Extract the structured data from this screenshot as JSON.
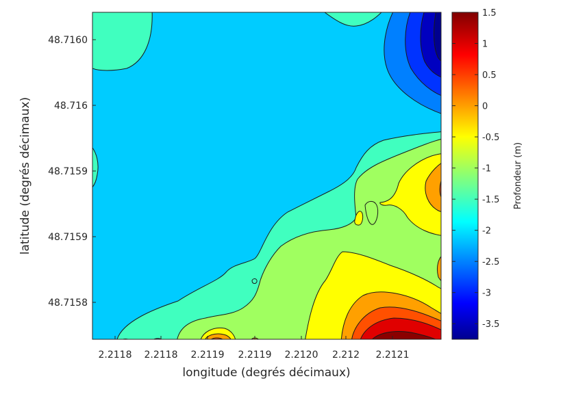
{
  "chart_data": {
    "type": "contour",
    "xlabel": "longitude (degrés décimaux)",
    "ylabel": "latitude (degrés décimaux)",
    "colorbar_label": "Profondeur (m)",
    "x_tick_labels": [
      "2.2118",
      "2.2118",
      "2.2119",
      "2.2119",
      "2.2120",
      "2.212",
      "2.2121"
    ],
    "y_tick_labels": [
      "48.7160",
      "48.716",
      "48.7159",
      "48.7159",
      "48.7158"
    ],
    "colorbar_range": [
      -3.75,
      1.5
    ],
    "colorbar_ticks": [
      "1.5",
      "1",
      "0.5",
      "0",
      "-0.5",
      "-1",
      "-1.5",
      "-2",
      "-2.5",
      "-3",
      "-3.5"
    ],
    "colormap": "jet",
    "contour_fill_colors": {
      "level_m3_0": "#0033ff",
      "level_m2_5": "#0080ff",
      "level_m2_0": "#00ccff",
      "level_m1_5": "#40ffbf",
      "level_m1_0": "#a0ff60",
      "level_m0_5": "#ffff00",
      "level_0_0": "#ffa000",
      "level_0_5": "#ff5000",
      "level_1_0": "#e00000",
      "level_1_5": "#8b0000"
    },
    "grid": false,
    "legend": "colorbar-right"
  }
}
